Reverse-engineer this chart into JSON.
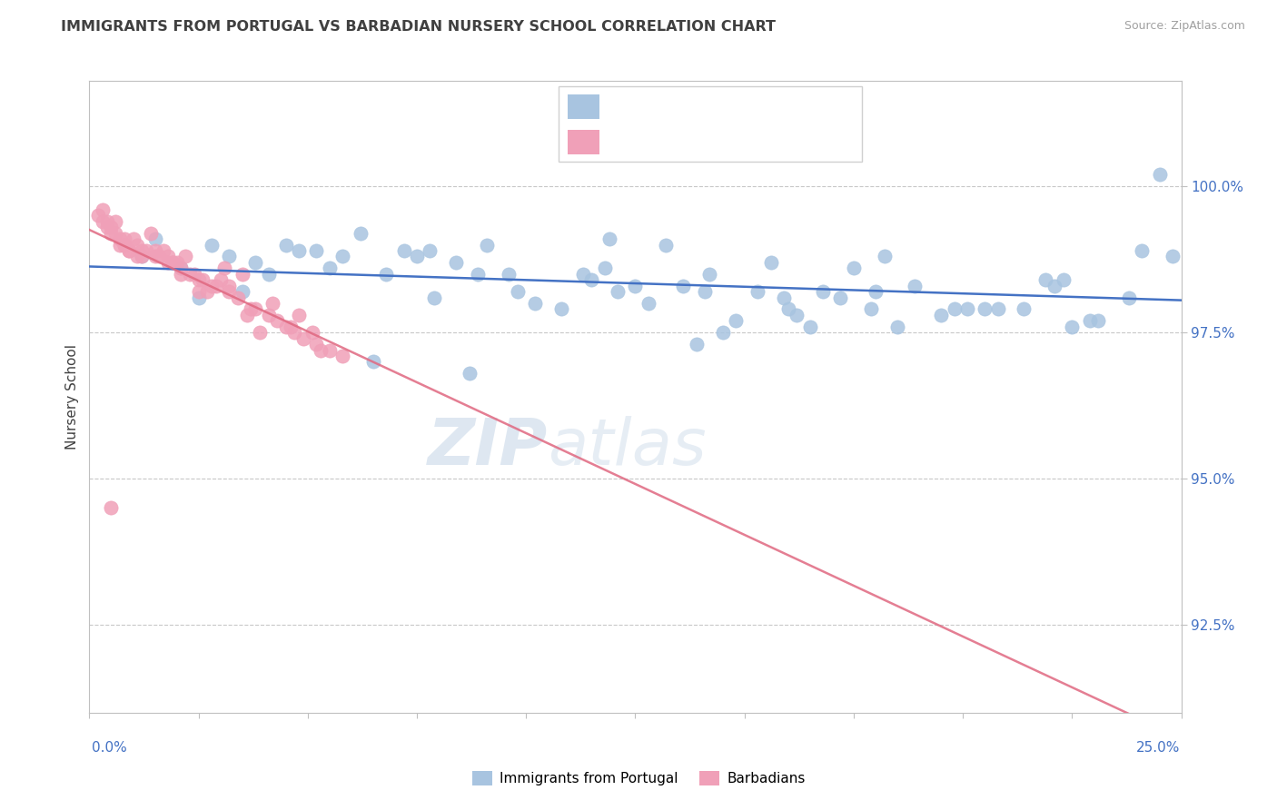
{
  "title": "IMMIGRANTS FROM PORTUGAL VS BARBADIAN NURSERY SCHOOL CORRELATION CHART",
  "source": "Source: ZipAtlas.com",
  "ylabel": "Nursery School",
  "ytick_labels": [
    "92.5%",
    "95.0%",
    "97.5%",
    "100.0%"
  ],
  "ytick_values": [
    92.5,
    95.0,
    97.5,
    100.0
  ],
  "xlim": [
    0.0,
    25.0
  ],
  "ylim": [
    91.0,
    101.8
  ],
  "blue_color": "#a8c4e0",
  "pink_color": "#f0a0b8",
  "line_blue": "#4472c4",
  "line_pink": "#e06880",
  "title_color": "#404040",
  "axis_label_color": "#4472c4",
  "blue_x": [
    1.2,
    1.5,
    2.1,
    2.8,
    3.2,
    3.8,
    4.1,
    4.5,
    5.2,
    5.8,
    6.2,
    6.8,
    7.2,
    7.5,
    7.8,
    8.4,
    8.9,
    9.1,
    9.6,
    9.8,
    10.2,
    10.8,
    11.3,
    11.5,
    11.9,
    12.1,
    12.5,
    12.8,
    13.2,
    13.6,
    14.1,
    14.2,
    14.8,
    15.3,
    15.6,
    15.9,
    16.2,
    16.5,
    16.8,
    17.2,
    17.5,
    17.9,
    18.2,
    18.5,
    18.9,
    19.5,
    19.8,
    20.1,
    20.5,
    20.8,
    21.4,
    21.9,
    22.1,
    22.3,
    22.9,
    23.1,
    23.8,
    24.1,
    24.5,
    6.5,
    8.7,
    11.8,
    13.9,
    3.5,
    2.5,
    4.8,
    5.5,
    7.9,
    14.5,
    18.0,
    22.5,
    16.0,
    24.8
  ],
  "blue_y": [
    98.8,
    99.1,
    98.6,
    99.0,
    98.8,
    98.7,
    98.5,
    99.0,
    98.9,
    98.8,
    99.2,
    98.5,
    98.9,
    98.8,
    98.9,
    98.7,
    98.5,
    99.0,
    98.5,
    98.2,
    98.0,
    97.9,
    98.5,
    98.4,
    99.1,
    98.2,
    98.3,
    98.0,
    99.0,
    98.3,
    98.2,
    98.5,
    97.7,
    98.2,
    98.7,
    98.1,
    97.8,
    97.6,
    98.2,
    98.1,
    98.6,
    97.9,
    98.8,
    97.6,
    98.3,
    97.8,
    97.9,
    97.9,
    97.9,
    97.9,
    97.9,
    98.4,
    98.3,
    98.4,
    97.7,
    97.7,
    98.1,
    98.9,
    100.2,
    97.0,
    96.8,
    98.6,
    97.3,
    98.2,
    98.1,
    98.9,
    98.6,
    98.1,
    97.5,
    98.2,
    97.6,
    97.9,
    98.8
  ],
  "pink_x": [
    0.2,
    0.3,
    0.3,
    0.4,
    0.4,
    0.5,
    0.5,
    0.6,
    0.6,
    0.7,
    0.7,
    0.8,
    0.8,
    0.8,
    0.9,
    0.9,
    1.0,
    1.1,
    1.1,
    1.2,
    1.2,
    1.3,
    1.4,
    1.5,
    1.5,
    1.6,
    1.7,
    1.8,
    1.8,
    1.9,
    1.9,
    2.0,
    2.1,
    2.1,
    2.2,
    2.3,
    2.4,
    2.5,
    2.5,
    2.6,
    2.7,
    2.8,
    2.9,
    3.0,
    3.1,
    3.2,
    3.2,
    3.4,
    3.5,
    3.6,
    3.7,
    3.8,
    3.9,
    4.1,
    4.2,
    4.3,
    4.5,
    4.6,
    4.7,
    4.8,
    4.9,
    5.1,
    5.2,
    5.3,
    5.5,
    5.8,
    0.5
  ],
  "pink_y": [
    99.5,
    99.6,
    99.4,
    99.4,
    99.3,
    99.3,
    99.2,
    99.4,
    99.2,
    99.1,
    99.0,
    99.1,
    99.0,
    99.0,
    98.9,
    98.9,
    99.1,
    99.0,
    98.8,
    98.9,
    98.8,
    98.9,
    99.2,
    98.9,
    98.8,
    98.8,
    98.9,
    98.8,
    98.7,
    98.7,
    98.7,
    98.7,
    98.6,
    98.5,
    98.8,
    98.5,
    98.5,
    98.4,
    98.2,
    98.4,
    98.2,
    98.3,
    98.3,
    98.4,
    98.6,
    98.3,
    98.2,
    98.1,
    98.5,
    97.8,
    97.9,
    97.9,
    97.5,
    97.8,
    98.0,
    97.7,
    97.6,
    97.6,
    97.5,
    97.8,
    97.4,
    97.5,
    97.3,
    97.2,
    97.2,
    97.1,
    94.5
  ]
}
